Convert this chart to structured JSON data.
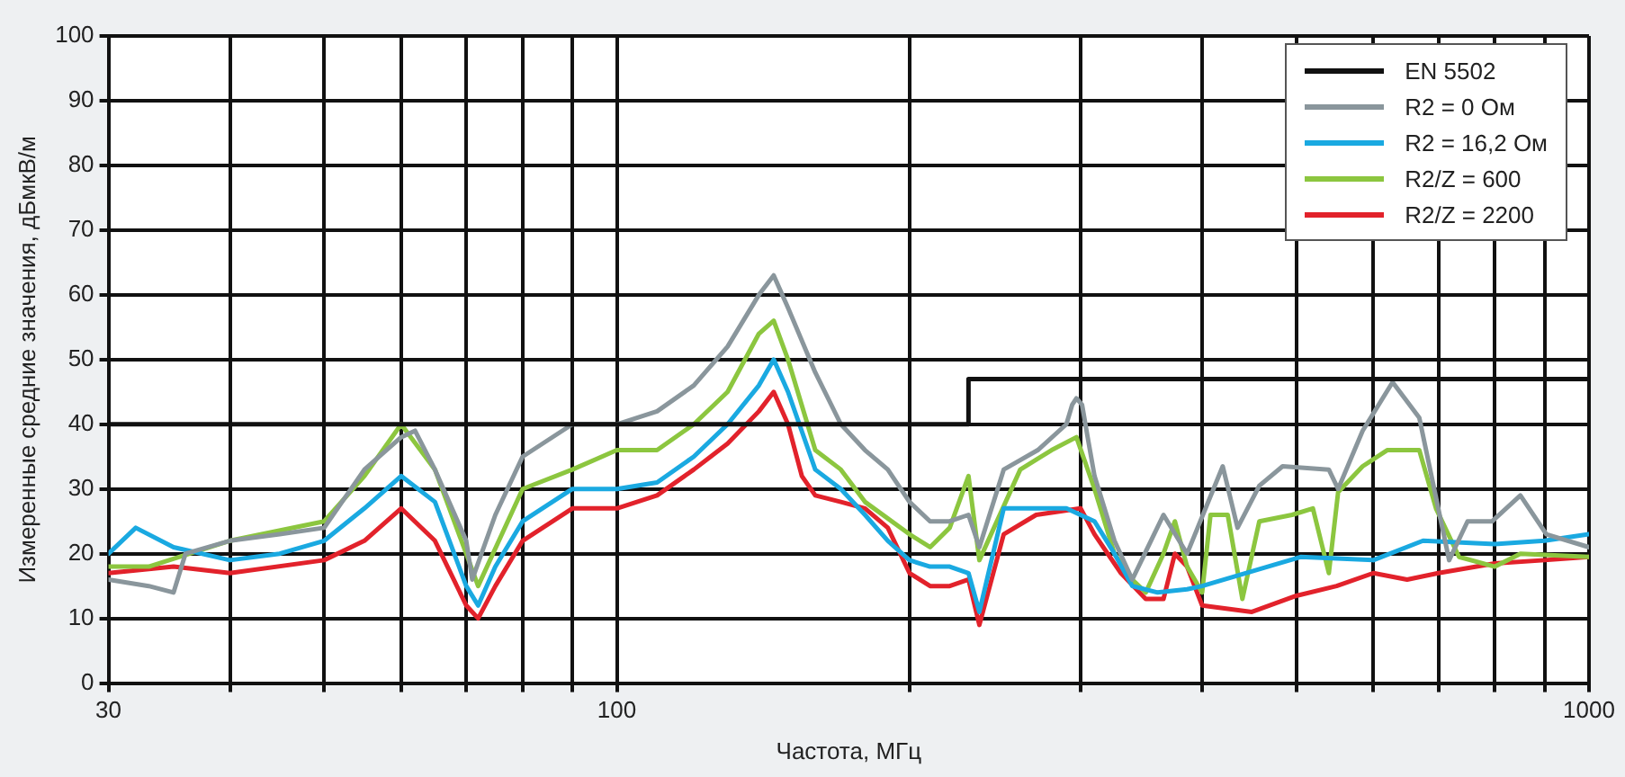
{
  "chart_data": {
    "type": "line",
    "xlabel": "Частота, МГц",
    "ylabel": "Измеренные средние значения, дБмкВ/м",
    "log": "x",
    "xlim": [
      30,
      1000
    ],
    "ylim": [
      0,
      100
    ],
    "xticks": [
      30,
      {
        "value": 40,
        "label": null
      },
      {
        "value": 50,
        "label": null
      },
      {
        "value": 60,
        "label": null
      },
      {
        "value": 70,
        "label": null
      },
      {
        "value": 80,
        "label": null
      },
      {
        "value": 90,
        "label": null
      },
      100,
      {
        "value": 200,
        "label": null
      },
      {
        "value": 300,
        "label": null
      },
      {
        "value": 400,
        "label": null
      },
      {
        "value": 500,
        "label": null
      },
      {
        "value": 600,
        "label": null
      },
      {
        "value": 700,
        "label": null
      },
      {
        "value": 800,
        "label": null
      },
      {
        "value": 900,
        "label": null
      },
      1000
    ],
    "yticks": [
      0,
      10,
      20,
      30,
      40,
      50,
      60,
      70,
      80,
      90,
      100
    ],
    "grid": true,
    "legend": "top right",
    "marker": "none",
    "line_style": "solid",
    "series": [
      {
        "name": "EN 5502",
        "color": "#111111",
        "x": [
          30,
          230,
          230,
          1000
        ],
        "values": [
          40,
          40,
          47,
          47
        ]
      },
      {
        "name": "R2 = 0 Ом",
        "color": "#8a969c",
        "x": [
          30,
          33,
          35,
          36,
          40,
          45,
          50,
          55,
          60,
          62,
          65,
          70,
          71,
          75,
          80,
          90,
          100,
          110,
          120,
          130,
          140,
          145,
          150,
          160,
          170,
          180,
          190,
          200,
          210,
          220,
          230,
          236,
          250,
          271,
          290,
          294,
          297,
          301,
          305,
          310,
          325,
          339,
          365,
          386,
          420,
          435,
          458,
          484,
          540,
          552,
          585,
          628,
          669,
          718,
          750,
          795,
          850,
          904,
          1000
        ],
        "values": [
          16,
          15,
          14,
          20,
          22,
          23,
          24,
          33,
          38,
          39,
          33,
          22,
          16,
          26,
          35,
          40,
          40,
          42,
          46,
          52,
          60,
          63,
          58,
          48,
          40,
          36,
          33,
          28,
          25,
          25,
          26,
          21,
          33,
          36,
          40,
          43,
          44,
          43,
          38,
          32,
          22,
          16,
          26,
          20,
          33.5,
          24,
          30.5,
          33.5,
          33,
          30,
          39,
          46.5,
          41,
          19,
          25,
          25,
          29,
          23,
          21
        ]
      },
      {
        "name": "R2 = 16,2 Ом",
        "color": "#1aa9e1",
        "x": [
          30,
          32,
          35,
          40,
          45,
          50,
          55,
          60,
          65,
          70,
          72,
          75,
          80,
          90,
          100,
          110,
          120,
          130,
          140,
          145,
          150,
          160,
          170,
          180,
          190,
          200,
          210,
          220,
          230,
          236,
          250,
          270,
          290,
          310,
          325,
          339,
          360,
          386,
          400,
          505,
          600,
          675,
          800,
          900,
          1000
        ],
        "values": [
          20,
          24,
          21,
          19,
          20,
          22,
          27,
          32,
          28,
          15,
          12,
          18,
          25,
          30,
          30,
          31,
          35,
          40,
          46,
          50,
          45,
          33,
          30,
          26,
          22,
          19,
          18,
          18,
          17,
          11,
          27,
          27,
          27,
          25,
          20,
          15,
          14,
          14.5,
          15,
          19.5,
          19,
          22,
          21.5,
          22,
          23
        ]
      },
      {
        "name": "R2/Z = 600",
        "color": "#8cc63f",
        "x": [
          30,
          33,
          40,
          50,
          55,
          60,
          65,
          70,
          72,
          80,
          90,
          100,
          110,
          120,
          130,
          140,
          145,
          150,
          160,
          170,
          180,
          200,
          210,
          220,
          230,
          236,
          260,
          280,
          297,
          310,
          325,
          339,
          350,
          365,
          375,
          386,
          400,
          408,
          425,
          440,
          458,
          495,
          520,
          540,
          552,
          585,
          620,
          669,
          696,
          735,
          800,
          850,
          1000
        ],
        "values": [
          18,
          18,
          22,
          25,
          32,
          40,
          33,
          20,
          15,
          30,
          33,
          36,
          36,
          40,
          45,
          54,
          56,
          50,
          36,
          33,
          28,
          23,
          21,
          24,
          32,
          19,
          33,
          36,
          38,
          30,
          20,
          16,
          14,
          20,
          25,
          18,
          14,
          26,
          26,
          13,
          25,
          26,
          27,
          17,
          29.5,
          33.5,
          36,
          36,
          27,
          19.5,
          18,
          20,
          19.5
        ]
      },
      {
        "name": "R2/Z = 2200",
        "color": "#e2222b",
        "x": [
          30,
          35,
          40,
          50,
          55,
          60,
          65,
          70,
          72,
          75,
          80,
          90,
          100,
          110,
          120,
          130,
          140,
          145,
          150,
          155,
          160,
          170,
          180,
          190,
          200,
          210,
          220,
          230,
          236,
          250,
          270,
          300,
          310,
          330,
          350,
          365,
          375,
          386,
          400,
          450,
          500,
          550,
          600,
          650,
          700,
          800,
          900,
          1000
        ],
        "values": [
          17,
          18,
          17,
          19,
          22,
          27,
          22,
          12,
          10,
          15,
          22,
          27,
          27,
          29,
          33,
          37,
          42,
          45,
          40,
          32,
          29,
          28,
          27,
          24,
          17,
          15,
          15,
          16,
          9,
          23,
          26,
          27,
          23,
          17,
          13,
          13,
          20,
          18,
          12,
          11,
          13.5,
          15,
          17,
          16,
          17,
          18.5,
          19,
          19.5
        ]
      }
    ]
  }
}
